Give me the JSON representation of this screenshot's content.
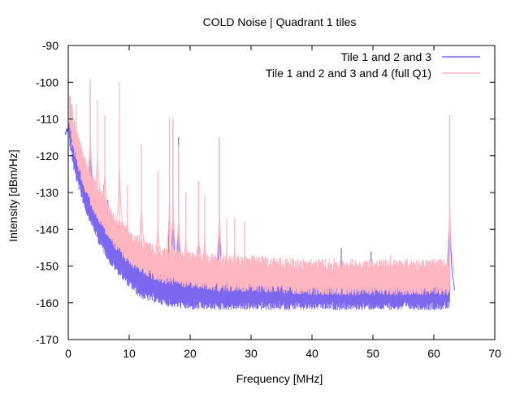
{
  "chart_data": {
    "type": "line",
    "title": "COLD Noise | Quadrant 1 tiles",
    "xlabel": "Frequency [MHz]",
    "ylabel": "Intensity [dBm/Hz]",
    "xlim": [
      0,
      70
    ],
    "ylim": [
      -170,
      -90
    ],
    "x_ticks": [
      "0",
      "10",
      "20",
      "30",
      "40",
      "50",
      "60",
      "70"
    ],
    "y_ticks": [
      "-170",
      "-160",
      "-150",
      "-140",
      "-130",
      "-120",
      "-110",
      "-100",
      "-90"
    ],
    "grid": false,
    "legend_position": "top-right",
    "series": [
      {
        "name": "Tile 1 and 2 and 3",
        "color": "#7b68ee",
        "baseline": [
          [
            0.2,
            -113
          ],
          [
            1,
            -121
          ],
          [
            2,
            -127
          ],
          [
            3,
            -132
          ],
          [
            4,
            -136
          ],
          [
            5,
            -140
          ],
          [
            6,
            -143
          ],
          [
            7,
            -146
          ],
          [
            8,
            -148
          ],
          [
            10,
            -152
          ],
          [
            12,
            -155
          ],
          [
            14,
            -156
          ],
          [
            16,
            -157
          ],
          [
            20,
            -158
          ],
          [
            25,
            -158
          ],
          [
            30,
            -158
          ],
          [
            40,
            -158
          ],
          [
            50,
            -158
          ],
          [
            60,
            -158
          ],
          [
            62.5,
            -158
          ]
        ],
        "spikes": [
          [
            0.3,
            -108
          ],
          [
            3.6,
            -101
          ],
          [
            5.8,
            -128
          ],
          [
            6.5,
            -132
          ],
          [
            8.2,
            -139
          ],
          [
            11.5,
            -145
          ],
          [
            13.5,
            -149
          ],
          [
            16.5,
            -138
          ],
          [
            17.2,
            -110
          ],
          [
            18.1,
            -115
          ],
          [
            21.4,
            -127
          ],
          [
            24.8,
            -115
          ],
          [
            26.0,
            -145
          ],
          [
            44.8,
            -145
          ],
          [
            49.7,
            -146
          ],
          [
            53.0,
            -150
          ],
          [
            62.6,
            -110
          ]
        ]
      },
      {
        "name": "Tile 1 and 2 and 3 and 4 (full Q1)",
        "color": "#ffb6c1",
        "baseline": [
          [
            0.2,
            -108
          ],
          [
            1,
            -116
          ],
          [
            2,
            -122
          ],
          [
            3,
            -127
          ],
          [
            4,
            -131
          ],
          [
            5,
            -134
          ],
          [
            6,
            -137
          ],
          [
            7,
            -140
          ],
          [
            8,
            -142
          ],
          [
            10,
            -146
          ],
          [
            12,
            -148
          ],
          [
            14,
            -150
          ],
          [
            16,
            -151
          ],
          [
            20,
            -152
          ],
          [
            25,
            -153
          ],
          [
            30,
            -153
          ],
          [
            40,
            -154
          ],
          [
            50,
            -154
          ],
          [
            60,
            -154
          ],
          [
            62.5,
            -154
          ]
        ],
        "spikes": [
          [
            1.3,
            -106
          ],
          [
            3.6,
            -99
          ],
          [
            4.8,
            -105
          ],
          [
            6.0,
            -109
          ],
          [
            8.4,
            -100
          ],
          [
            9.7,
            -128
          ],
          [
            12.0,
            -117
          ],
          [
            14.7,
            -124
          ],
          [
            16.6,
            -110
          ],
          [
            17.2,
            -110
          ],
          [
            18.1,
            -117
          ],
          [
            19.3,
            -130
          ],
          [
            21.4,
            -127
          ],
          [
            22.4,
            -131
          ],
          [
            24.8,
            -115
          ],
          [
            26.0,
            -137
          ],
          [
            27.3,
            -137
          ],
          [
            28.9,
            -138
          ],
          [
            32.1,
            -148
          ],
          [
            34.8,
            -150
          ],
          [
            36.1,
            -149
          ],
          [
            40.1,
            -151
          ],
          [
            48.2,
            -151
          ],
          [
            52.9,
            -147
          ],
          [
            62.6,
            -109
          ]
        ]
      }
    ]
  }
}
